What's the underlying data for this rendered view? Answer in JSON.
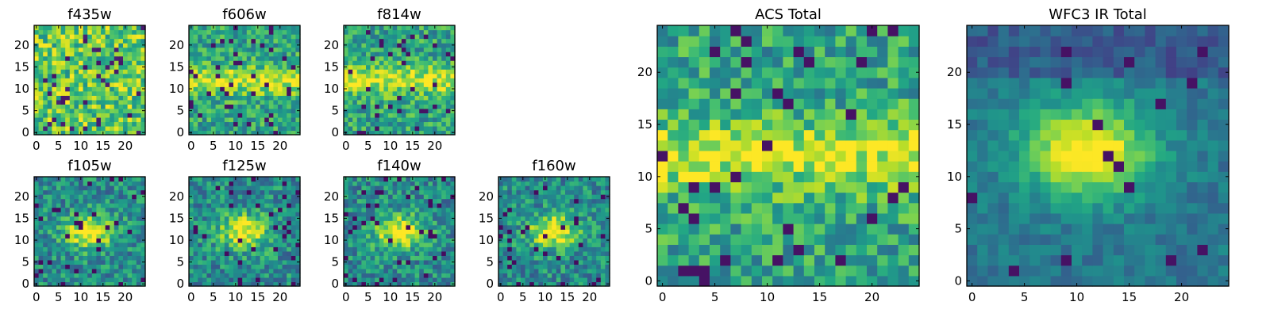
{
  "chart_data": [
    {
      "type": "heatmap",
      "title": "f435w",
      "grid": [
        25,
        25
      ],
      "seed": 11,
      "colormap": "viridis",
      "xticks": [
        "0",
        "5",
        "10",
        "15",
        "20"
      ],
      "yticks": [
        "0",
        "5",
        "10",
        "15",
        "20"
      ],
      "pattern": "noise",
      "xlim": [
        0,
        25
      ],
      "ylim": [
        0,
        25
      ]
    },
    {
      "type": "heatmap",
      "title": "f606w",
      "grid": [
        25,
        25
      ],
      "seed": 23,
      "colormap": "viridis",
      "xticks": [
        "0",
        "5",
        "10",
        "15",
        "20"
      ],
      "yticks": [
        "0",
        "5",
        "10",
        "15",
        "20"
      ],
      "pattern": "band",
      "xlim": [
        0,
        25
      ],
      "ylim": [
        0,
        25
      ]
    },
    {
      "type": "heatmap",
      "title": "f814w",
      "grid": [
        25,
        25
      ],
      "seed": 37,
      "colormap": "viridis",
      "xticks": [
        "0",
        "5",
        "10",
        "15",
        "20"
      ],
      "yticks": [
        "0",
        "5",
        "10",
        "15",
        "20"
      ],
      "pattern": "band",
      "xlim": [
        0,
        25
      ],
      "ylim": [
        0,
        25
      ]
    },
    {
      "type": "heatmap",
      "title": "f105w",
      "grid": [
        25,
        25
      ],
      "seed": 41,
      "colormap": "viridis",
      "xticks": [
        "0",
        "5",
        "10",
        "15",
        "20"
      ],
      "yticks": [
        "0",
        "5",
        "10",
        "15",
        "20"
      ],
      "pattern": "source",
      "xlim": [
        0,
        25
      ],
      "ylim": [
        0,
        25
      ]
    },
    {
      "type": "heatmap",
      "title": "f125w",
      "grid": [
        25,
        25
      ],
      "seed": 53,
      "colormap": "viridis",
      "xticks": [
        "0",
        "5",
        "10",
        "15",
        "20"
      ],
      "yticks": [
        "0",
        "5",
        "10",
        "15",
        "20"
      ],
      "pattern": "source",
      "xlim": [
        0,
        25
      ],
      "ylim": [
        0,
        25
      ]
    },
    {
      "type": "heatmap",
      "title": "f140w",
      "grid": [
        25,
        25
      ],
      "seed": 67,
      "colormap": "viridis",
      "xticks": [
        "0",
        "5",
        "10",
        "15",
        "20"
      ],
      "yticks": [
        "0",
        "5",
        "10",
        "15",
        "20"
      ],
      "pattern": "source",
      "xlim": [
        0,
        25
      ],
      "ylim": [
        0,
        25
      ]
    },
    {
      "type": "heatmap",
      "title": "f160w",
      "grid": [
        25,
        25
      ],
      "seed": 79,
      "colormap": "viridis",
      "xticks": [
        "0",
        "5",
        "10",
        "15",
        "20"
      ],
      "yticks": [
        "0",
        "5",
        "10",
        "15",
        "20"
      ],
      "pattern": "source",
      "xlim": [
        0,
        25
      ],
      "ylim": [
        0,
        25
      ]
    },
    {
      "type": "heatmap",
      "title": "ACS Total",
      "grid": [
        25,
        25
      ],
      "seed": 97,
      "colormap": "viridis",
      "xticks": [
        "0",
        "5",
        "10",
        "15",
        "20"
      ],
      "yticks": [
        "0",
        "5",
        "10",
        "15",
        "20"
      ],
      "pattern": "band",
      "xlim": [
        0,
        25
      ],
      "ylim": [
        0,
        25
      ]
    },
    {
      "type": "heatmap",
      "title": "WFC3 IR Total",
      "grid": [
        25,
        25
      ],
      "seed": 131,
      "colormap": "viridis",
      "xticks": [
        "0",
        "5",
        "10",
        "15",
        "20"
      ],
      "yticks": [
        "0",
        "5",
        "10",
        "15",
        "20"
      ],
      "pattern": "smooth",
      "xlim": [
        0,
        25
      ],
      "ylim": [
        0,
        25
      ]
    }
  ]
}
